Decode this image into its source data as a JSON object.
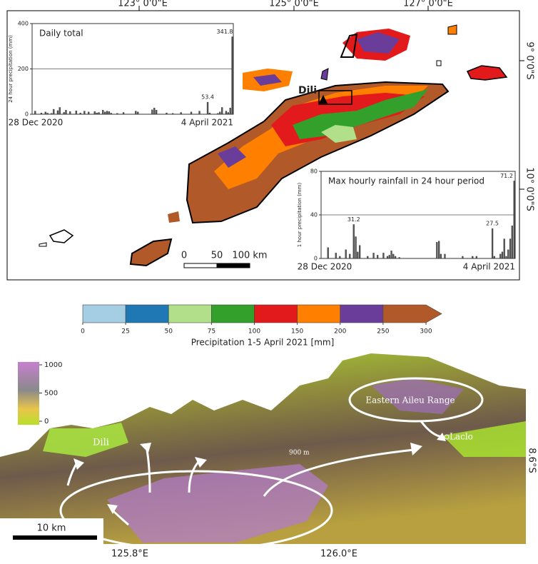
{
  "map": {
    "lon_labels": [
      "123° 0'0\"E",
      "125° 0'0\"E",
      "127° 0'0\"E"
    ],
    "lat_labels": [
      "9° 0'0\"S",
      "10° 0'0\"S"
    ],
    "city": "Dili",
    "scale_bar": [
      "0",
      "50",
      "100 km"
    ]
  },
  "chart_data": [
    {
      "type": "bar",
      "title": "Daily total",
      "y_label": "24 hour precipitation (mm)",
      "color": "#555555",
      "ylim": [
        0,
        400
      ],
      "yticks": [
        0,
        200,
        400
      ],
      "grid": true,
      "categories": [
        "28 Dec 2020",
        null,
        null,
        null,
        null,
        null,
        null,
        null,
        null,
        null,
        null,
        null,
        null,
        null,
        null,
        null,
        null,
        null,
        null,
        null,
        null,
        null,
        null,
        null,
        null,
        null,
        null,
        null,
        null,
        null,
        null,
        null,
        null,
        null,
        null,
        null,
        null,
        null,
        null,
        null,
        null,
        null,
        null,
        null,
        null,
        null,
        null,
        null,
        null,
        null,
        null,
        null,
        null,
        null,
        null,
        null,
        null,
        null,
        null,
        null,
        null,
        null,
        null,
        null,
        null,
        null,
        null,
        null,
        null,
        null,
        null,
        null,
        null,
        null,
        null,
        null,
        null,
        null,
        null,
        null,
        null,
        null,
        null,
        null,
        null,
        null,
        null,
        null,
        null,
        null,
        null,
        null,
        null,
        null,
        null,
        null,
        null,
        "4 April 2021"
      ],
      "values": [
        0,
        14,
        0,
        0,
        6,
        0,
        10,
        5,
        0,
        4,
        22,
        0,
        16,
        30,
        0,
        8,
        18,
        0,
        12,
        0,
        0,
        15,
        0,
        6,
        0,
        14,
        0,
        10,
        0,
        0,
        12,
        6,
        8,
        0,
        18,
        10,
        14,
        12,
        5,
        0,
        0,
        4,
        0,
        0,
        8,
        0,
        0,
        0,
        0,
        0,
        14,
        10,
        0,
        0,
        0,
        0,
        0,
        0,
        20,
        28,
        18,
        0,
        0,
        0,
        0,
        6,
        0,
        0,
        4,
        0,
        0,
        0,
        8,
        0,
        0,
        0,
        0,
        10,
        0,
        0,
        0,
        14,
        0,
        0,
        0,
        53.4,
        6,
        0,
        0,
        0,
        4,
        10,
        30,
        0,
        14,
        8,
        28,
        341.8
      ],
      "value_labels": [
        null,
        null,
        null,
        null,
        null,
        null,
        null,
        null,
        null,
        null,
        null,
        null,
        null,
        null,
        null,
        null,
        null,
        null,
        null,
        null,
        null,
        null,
        null,
        null,
        null,
        null,
        null,
        null,
        null,
        null,
        null,
        null,
        null,
        null,
        null,
        null,
        null,
        null,
        null,
        null,
        null,
        null,
        null,
        null,
        null,
        null,
        null,
        null,
        null,
        null,
        null,
        null,
        null,
        null,
        null,
        null,
        null,
        null,
        null,
        null,
        null,
        null,
        null,
        null,
        null,
        null,
        null,
        null,
        null,
        null,
        null,
        null,
        null,
        null,
        null,
        null,
        null,
        null,
        null,
        null,
        null,
        null,
        null,
        null,
        null,
        "53.4",
        null,
        null,
        null,
        null,
        null,
        null,
        null,
        null,
        null,
        null,
        null,
        "341.8"
      ]
    },
    {
      "type": "bar",
      "title": "Max hourly rainfall in 24 hour period",
      "y_label": "1 hour precipitation (mm)",
      "color": "#555555",
      "ylim": [
        0,
        80
      ],
      "yticks": [
        0,
        40,
        80
      ],
      "grid": true,
      "categories": [
        "28 Dec 2020",
        null,
        null,
        null,
        null,
        null,
        null,
        null,
        null,
        null,
        null,
        null,
        null,
        null,
        null,
        null,
        null,
        null,
        null,
        null,
        null,
        null,
        null,
        null,
        null,
        null,
        null,
        null,
        null,
        null,
        null,
        null,
        null,
        null,
        null,
        null,
        null,
        null,
        null,
        null,
        null,
        null,
        null,
        null,
        null,
        null,
        null,
        null,
        null,
        null,
        null,
        null,
        null,
        null,
        null,
        null,
        null,
        null,
        null,
        null,
        null,
        null,
        null,
        null,
        null,
        null,
        null,
        null,
        null,
        null,
        null,
        null,
        null,
        null,
        null,
        null,
        null,
        null,
        null,
        null,
        null,
        null,
        null,
        null,
        null,
        null,
        null,
        null,
        null,
        null,
        null,
        null,
        null,
        null,
        null,
        null,
        null,
        "4 April 2021"
      ],
      "values": [
        0,
        0,
        0,
        10,
        0,
        0,
        0,
        5,
        0,
        2,
        0,
        0,
        8,
        0,
        4,
        0,
        31.2,
        20,
        6,
        12,
        0,
        0,
        0,
        2,
        0,
        0,
        5,
        0,
        3,
        0,
        0,
        5,
        0,
        2,
        3,
        7,
        4,
        2,
        0,
        1,
        0,
        0,
        0,
        0,
        0,
        0,
        0,
        0,
        0,
        0,
        0,
        0,
        0,
        0,
        0,
        0,
        0,
        0,
        15,
        16,
        4,
        0,
        4,
        0,
        0,
        0,
        0,
        0,
        0,
        0,
        0,
        2,
        0,
        0,
        0,
        0,
        2,
        0,
        2,
        0,
        0,
        0,
        0,
        0,
        0,
        0,
        27.5,
        2,
        0,
        0,
        4,
        6,
        18,
        2,
        8,
        18,
        30,
        71.2
      ],
      "value_labels": [
        null,
        null,
        null,
        null,
        null,
        null,
        null,
        null,
        null,
        null,
        null,
        null,
        null,
        null,
        null,
        null,
        "31.2",
        null,
        null,
        null,
        null,
        null,
        null,
        null,
        null,
        null,
        null,
        null,
        null,
        null,
        null,
        null,
        null,
        null,
        null,
        null,
        null,
        null,
        null,
        null,
        null,
        null,
        null,
        null,
        null,
        null,
        null,
        null,
        null,
        null,
        null,
        null,
        null,
        null,
        null,
        null,
        null,
        null,
        null,
        null,
        null,
        null,
        null,
        null,
        null,
        null,
        null,
        null,
        null,
        null,
        null,
        null,
        null,
        null,
        null,
        null,
        null,
        null,
        null,
        null,
        null,
        null,
        null,
        null,
        null,
        null,
        "27.5",
        null,
        null,
        null,
        null,
        null,
        null,
        null,
        null,
        null,
        null,
        "71.2"
      ]
    }
  ],
  "colorbar": {
    "label": "Precipitation 1-5 April 2021 [mm]",
    "ticks": [
      0,
      25,
      50,
      75,
      100,
      150,
      200,
      250,
      300
    ],
    "colors": [
      "#a6cee3",
      "#1f78b4",
      "#b2df8a",
      "#33a02c",
      "#e31a1c",
      "#ff7f00",
      "#6a3d9a",
      "#b15928"
    ]
  },
  "terrain": {
    "legend_ticks": [
      1000,
      500,
      0
    ],
    "labels": {
      "dili": "Dili",
      "range": "Eastern Aileu Range",
      "laclo": "Laclo",
      "elevation": "900 m"
    },
    "scale_bar": "10 km",
    "lon_labels": [
      "125.8°E",
      "126.0°E"
    ],
    "lat_label": "8.6°S"
  }
}
